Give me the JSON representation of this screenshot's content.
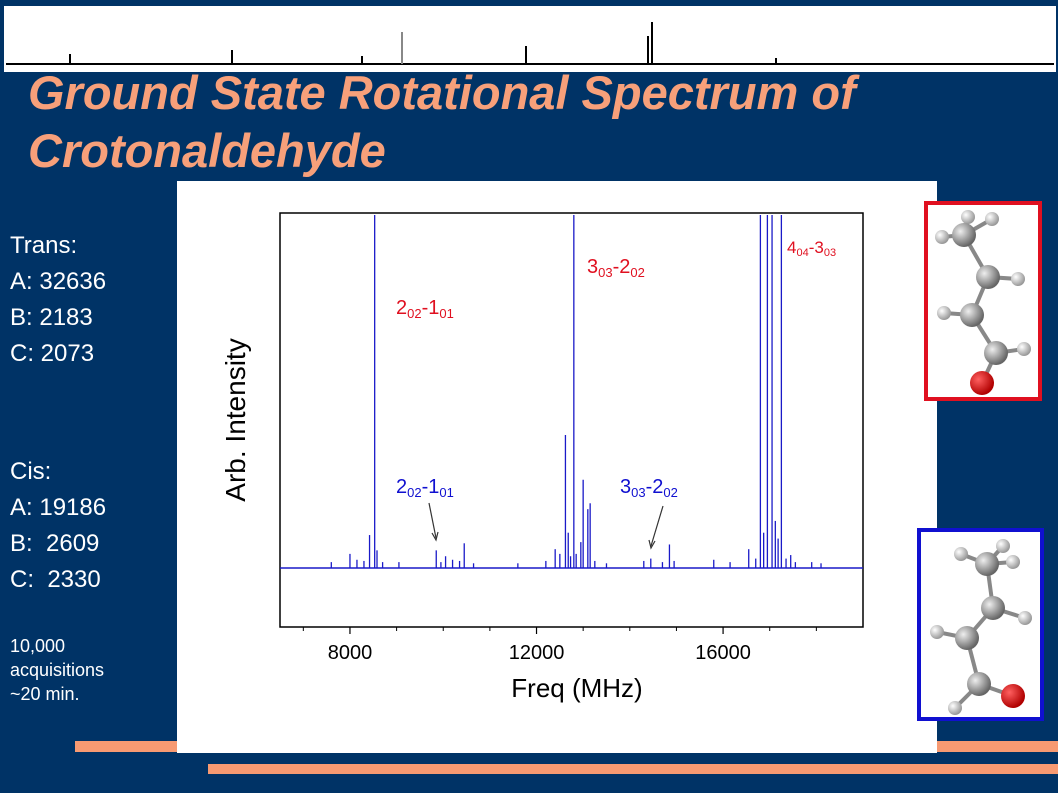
{
  "title": "Ground State Rotational Spectrum of Crotonaldehyde",
  "trans": {
    "heading": "Trans:",
    "a": "A: 32636",
    "b": "B: 2183",
    "c": "C: 2073"
  },
  "cis": {
    "heading": "Cis:",
    "a": "A: 19186",
    "b": "B:  2609",
    "c": "C:  2330"
  },
  "acq": {
    "line1": "10,000",
    "line2": "acquisitions",
    "line3": "~20 min."
  },
  "colors": {
    "background": "#003366",
    "title": "#f7a07a",
    "trans": "#e01020",
    "cis": "#1010d0",
    "accent_bar": "#f79a72"
  },
  "chart_data": {
    "type": "line",
    "xlabel": "Freq (MHz)",
    "ylabel": "Arb. Intensity",
    "xlim": [
      6500,
      19000
    ],
    "ylim": [
      -1,
      3.0
    ],
    "grid": false,
    "x_ticks": [
      "8000",
      "12000",
      "16000"
    ],
    "x_tick_values": [
      8000,
      12000,
      16000
    ],
    "series": [
      {
        "color": "#1a1ac8",
        "lines": [
          {
            "x": 7600,
            "y": 0.05
          },
          {
            "x": 8000,
            "y": 0.12
          },
          {
            "x": 8150,
            "y": 0.07
          },
          {
            "x": 8300,
            "y": 0.06
          },
          {
            "x": 8420,
            "y": 0.28
          },
          {
            "x": 8530,
            "y": 3.0
          },
          {
            "x": 8580,
            "y": 0.15
          },
          {
            "x": 8700,
            "y": 0.05
          },
          {
            "x": 9050,
            "y": 0.05
          },
          {
            "x": 9850,
            "y": 0.15
          },
          {
            "x": 9950,
            "y": 0.05
          },
          {
            "x": 10050,
            "y": 0.1
          },
          {
            "x": 10200,
            "y": 0.07
          },
          {
            "x": 10350,
            "y": 0.06
          },
          {
            "x": 10450,
            "y": 0.21
          },
          {
            "x": 10650,
            "y": 0.04
          },
          {
            "x": 11600,
            "y": 0.04
          },
          {
            "x": 12200,
            "y": 0.06
          },
          {
            "x": 12400,
            "y": 0.16
          },
          {
            "x": 12500,
            "y": 0.12
          },
          {
            "x": 12620,
            "y": 1.13
          },
          {
            "x": 12680,
            "y": 0.3
          },
          {
            "x": 12730,
            "y": 0.1
          },
          {
            "x": 12800,
            "y": 3.0
          },
          {
            "x": 12850,
            "y": 0.12
          },
          {
            "x": 12950,
            "y": 0.22
          },
          {
            "x": 13000,
            "y": 0.75
          },
          {
            "x": 13100,
            "y": 0.5
          },
          {
            "x": 13150,
            "y": 0.55
          },
          {
            "x": 13250,
            "y": 0.06
          },
          {
            "x": 13500,
            "y": 0.04
          },
          {
            "x": 14300,
            "y": 0.06
          },
          {
            "x": 14450,
            "y": 0.08
          },
          {
            "x": 14700,
            "y": 0.05
          },
          {
            "x": 14850,
            "y": 0.2
          },
          {
            "x": 14950,
            "y": 0.06
          },
          {
            "x": 15800,
            "y": 0.07
          },
          {
            "x": 16150,
            "y": 0.05
          },
          {
            "x": 16550,
            "y": 0.16
          },
          {
            "x": 16700,
            "y": 0.08
          },
          {
            "x": 16800,
            "y": 3.0
          },
          {
            "x": 16870,
            "y": 0.3
          },
          {
            "x": 16950,
            "y": 3.0
          },
          {
            "x": 17050,
            "y": 3.0
          },
          {
            "x": 17120,
            "y": 0.4
          },
          {
            "x": 17180,
            "y": 0.25
          },
          {
            "x": 17250,
            "y": 3.0
          },
          {
            "x": 17350,
            "y": 0.08
          },
          {
            "x": 17450,
            "y": 0.11
          },
          {
            "x": 17550,
            "y": 0.05
          },
          {
            "x": 17900,
            "y": 0.05
          },
          {
            "x": 18100,
            "y": 0.04
          }
        ]
      }
    ],
    "annotations": [
      {
        "label_main": "2",
        "label_sub1": "02",
        "label_mid": "-1",
        "label_sub2": "01",
        "color": "#e01020"
      },
      {
        "label_main": "3",
        "label_sub1": "03",
        "label_mid": "-2",
        "label_sub2": "02",
        "color": "#e01020"
      },
      {
        "label_main": "4",
        "label_sub1": "04",
        "label_mid": "-3",
        "label_sub2": "03",
        "color": "#e01020"
      },
      {
        "label_main": "2",
        "label_sub1": "02",
        "label_mid": "-1",
        "label_sub2": "01",
        "color": "#1010d0"
      },
      {
        "label_main": "3",
        "label_sub1": "03",
        "label_mid": "-2",
        "label_sub2": "02",
        "color": "#1010d0"
      }
    ]
  }
}
